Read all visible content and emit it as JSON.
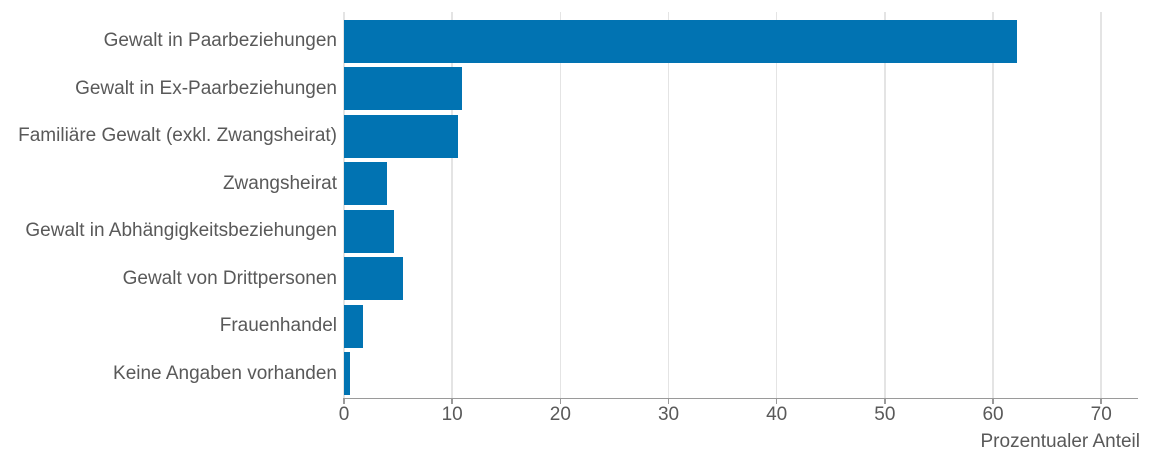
{
  "chart_data": {
    "type": "bar",
    "orientation": "horizontal",
    "title": "",
    "xlabel": "Prozentualer Anteil",
    "ylabel": "",
    "categories": [
      "Gewalt in Paarbeziehungen",
      "Gewalt in Ex-Paarbeziehungen",
      "Familiäre Gewalt (exkl. Zwangsheirat)",
      "Zwangsheirat",
      "Gewalt in Abhängigkeitsbeziehungen",
      "Gewalt von Drittpersonen",
      "Frauenhandel",
      "Keine Angaben vorhanden"
    ],
    "values": [
      62.2,
      10.9,
      10.5,
      4.0,
      4.6,
      5.5,
      1.8,
      0.6
    ],
    "xlim": [
      0,
      73.4
    ],
    "xticks": [
      0,
      10,
      20,
      30,
      40,
      50,
      60,
      70
    ],
    "grid": "vertical-only",
    "legend_position": "none"
  },
  "colors": {
    "bar": "#0173b2",
    "grid": "#e4e4e4",
    "axis": "#9a9a9a",
    "text": "#595959",
    "background": "#ffffff"
  }
}
